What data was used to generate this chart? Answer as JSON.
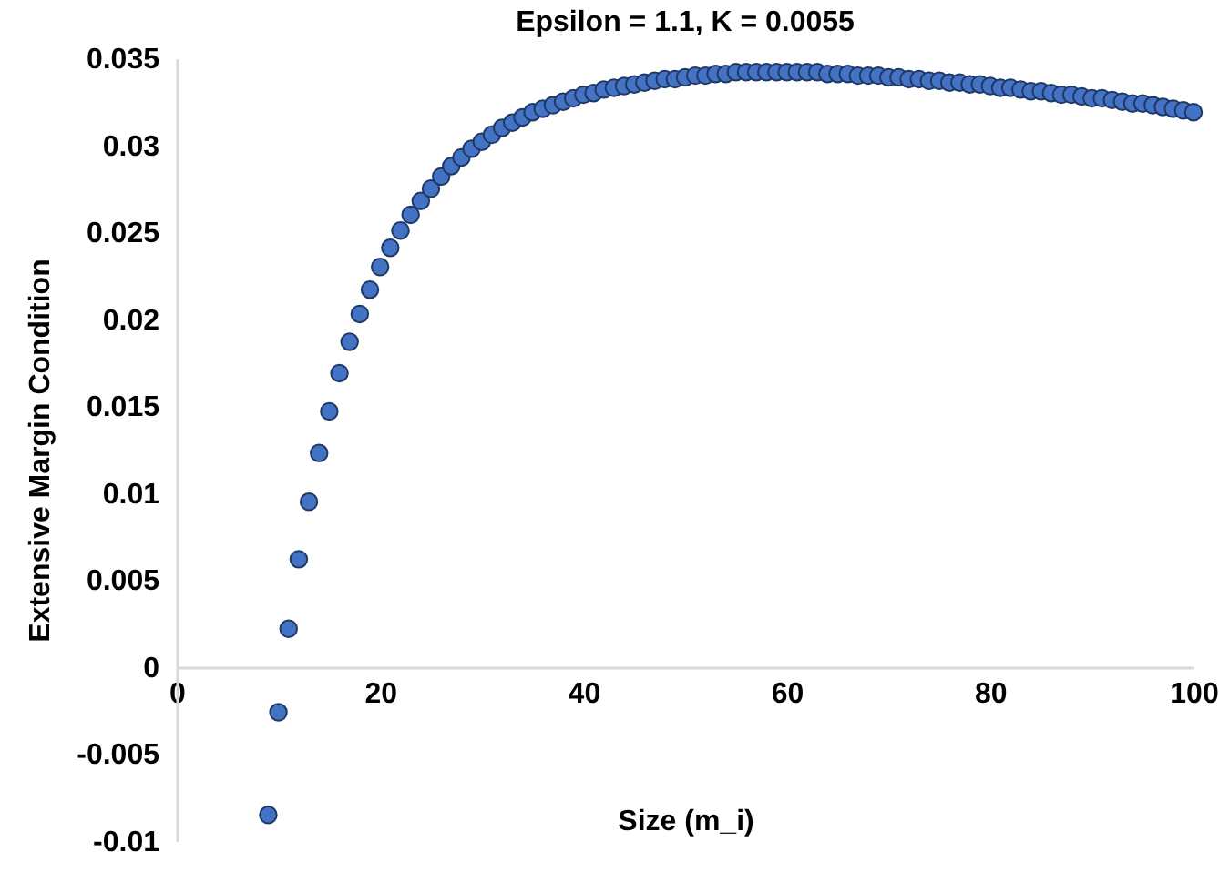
{
  "chart_data": {
    "type": "scatter",
    "title": "Epsilon = 1.1, K = 0.0055",
    "xlabel": "Size (m_i)",
    "ylabel": "Extensive Margin Condition",
    "x": [
      9,
      10,
      11,
      12,
      13,
      14,
      15,
      16,
      17,
      18,
      19,
      20,
      21,
      22,
      23,
      24,
      25,
      26,
      27,
      28,
      29,
      30,
      31,
      32,
      33,
      34,
      35,
      36,
      37,
      38,
      39,
      40,
      41,
      42,
      43,
      44,
      45,
      46,
      47,
      48,
      49,
      50,
      51,
      52,
      53,
      54,
      55,
      56,
      57,
      58,
      59,
      60,
      61,
      62,
      63,
      64,
      65,
      66,
      67,
      68,
      69,
      70,
      71,
      72,
      73,
      74,
      75,
      76,
      77,
      78,
      79,
      80,
      81,
      82,
      83,
      84,
      85,
      86,
      87,
      88,
      89,
      90,
      91,
      92,
      93,
      94,
      95,
      96,
      97,
      98,
      99,
      100
    ],
    "series": [
      {
        "color": "#4472c4",
        "values": [
          -0.0085,
          -0.0026,
          0.0022,
          0.0062,
          0.0095,
          0.0123,
          0.0147,
          0.0169,
          0.0187,
          0.0203,
          0.0217,
          0.023,
          0.0241,
          0.0251,
          0.026,
          0.0268,
          0.0275,
          0.0282,
          0.0288,
          0.0293,
          0.0298,
          0.0302,
          0.0306,
          0.031,
          0.0313,
          0.0316,
          0.0319,
          0.0321,
          0.0323,
          0.0325,
          0.0327,
          0.0329,
          0.033,
          0.0332,
          0.0333,
          0.0334,
          0.0335,
          0.0336,
          0.0337,
          0.0338,
          0.0338,
          0.0339,
          0.034,
          0.034,
          0.0341,
          0.0341,
          0.0342,
          0.0342,
          0.0342,
          0.0342,
          0.0342,
          0.0342,
          0.0342,
          0.0342,
          0.0342,
          0.0341,
          0.0341,
          0.0341,
          0.034,
          0.034,
          0.034,
          0.0339,
          0.0339,
          0.0338,
          0.0338,
          0.0337,
          0.0337,
          0.0336,
          0.0336,
          0.0335,
          0.0335,
          0.0334,
          0.0333,
          0.0333,
          0.0332,
          0.0331,
          0.0331,
          0.033,
          0.0329,
          0.0329,
          0.0328,
          0.0327,
          0.0327,
          0.0326,
          0.0325,
          0.0324,
          0.0324,
          0.0323,
          0.0322,
          0.0321,
          0.032,
          0.0319
        ]
      }
    ],
    "xlim": [
      0,
      100
    ],
    "xticks": [
      0,
      20,
      40,
      60,
      80,
      100
    ],
    "ylim": [
      -0.01,
      0.035
    ],
    "yticks": [
      -0.01,
      -0.005,
      0,
      0.005,
      0.01,
      0.015,
      0.02,
      0.025,
      0.03,
      0.035
    ],
    "marker": "circle",
    "grid": false,
    "legend": false
  }
}
